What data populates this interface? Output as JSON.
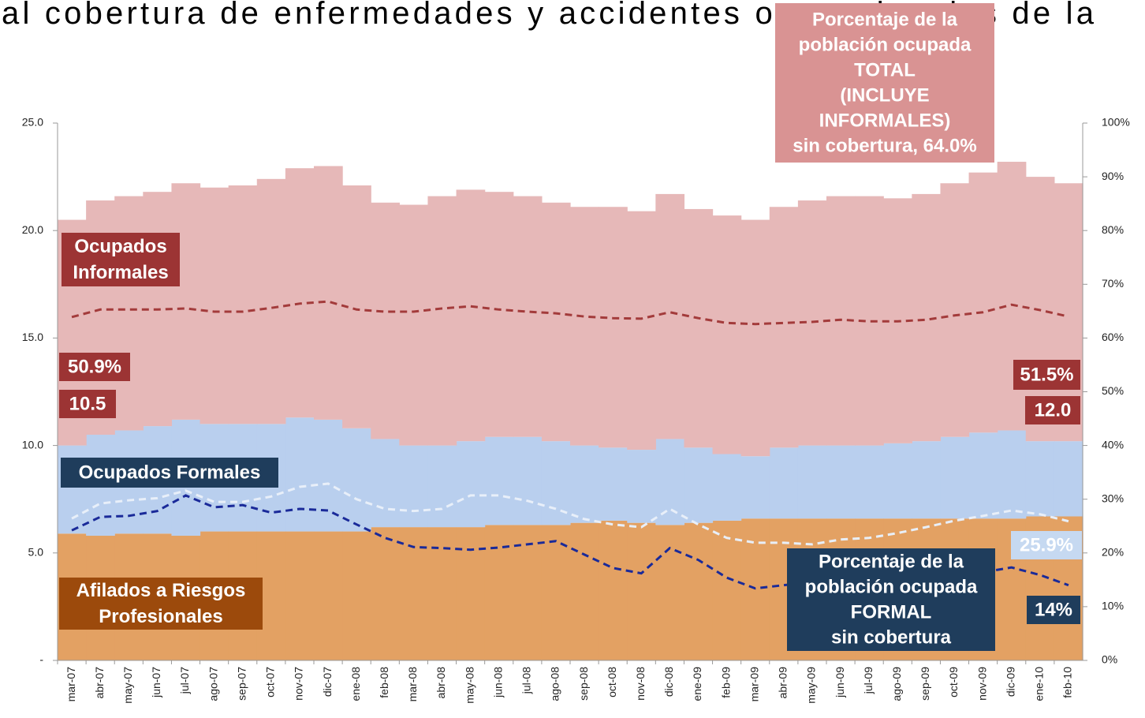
{
  "page_text": "al cobertura de enfermedades y accidentes ocupacionales de la",
  "chart_data": {
    "type": "area",
    "categories": [
      "mar-07",
      "abr-07",
      "may-07",
      "jun-07",
      "jul-07",
      "ago-07",
      "sep-07",
      "oct-07",
      "nov-07",
      "dic-07",
      "ene-08",
      "feb-08",
      "mar-08",
      "abr-08",
      "may-08",
      "jun-08",
      "jul-08",
      "ago-08",
      "sep-08",
      "oct-08",
      "nov-08",
      "dic-08",
      "ene-09",
      "feb-09",
      "mar-09",
      "abr-09",
      "may-09",
      "jun-09",
      "jul-09",
      "ago-09",
      "sep-09",
      "oct-09",
      "nov-09",
      "dic-09",
      "ene-10",
      "feb-10"
    ],
    "ylim": [
      0,
      25
    ],
    "yticks": [
      {
        "value": 0,
        "label": "-"
      },
      {
        "value": 5,
        "label": "5.0"
      },
      {
        "value": 10,
        "label": "10.0"
      },
      {
        "value": 15,
        "label": "15.0"
      },
      {
        "value": 20,
        "label": "20.0"
      },
      {
        "value": 25,
        "label": "25.0"
      }
    ],
    "y2lim": [
      0,
      100
    ],
    "y2ticks": [
      {
        "value": 0,
        "label": "0%"
      },
      {
        "value": 10,
        "label": "10%"
      },
      {
        "value": 20,
        "label": "20%"
      },
      {
        "value": 30,
        "label": "30%"
      },
      {
        "value": 40,
        "label": "40%"
      },
      {
        "value": 50,
        "label": "50%"
      },
      {
        "value": 60,
        "label": "60%"
      },
      {
        "value": 70,
        "label": "70%"
      },
      {
        "value": 80,
        "label": "80%"
      },
      {
        "value": 90,
        "label": "90%"
      },
      {
        "value": 100,
        "label": "100%"
      }
    ],
    "series": [
      {
        "name": "Afilados a Riesgos Profesionales",
        "type": "area",
        "color": "#e3a163",
        "values": [
          5.9,
          5.8,
          5.9,
          5.9,
          5.8,
          6.0,
          6.0,
          6.0,
          6.0,
          6.0,
          6.0,
          6.2,
          6.2,
          6.2,
          6.2,
          6.3,
          6.3,
          6.3,
          6.4,
          6.5,
          6.4,
          6.3,
          6.4,
          6.5,
          6.6,
          6.6,
          6.6,
          6.6,
          6.6,
          6.6,
          6.6,
          6.6,
          6.6,
          6.6,
          6.7,
          6.7
        ]
      },
      {
        "name": "Ocupados Formales",
        "type": "area",
        "color": "#b9cfee",
        "values": [
          4.1,
          4.7,
          4.8,
          5.0,
          5.4,
          5.0,
          5.0,
          5.0,
          5.3,
          5.2,
          4.8,
          4.1,
          3.8,
          3.8,
          4.0,
          4.1,
          4.1,
          3.9,
          3.6,
          3.4,
          3.4,
          4.0,
          3.5,
          3.1,
          2.9,
          3.3,
          3.4,
          3.4,
          3.4,
          3.5,
          3.6,
          3.8,
          4.0,
          4.1,
          3.5,
          3.5
        ]
      },
      {
        "name": "Ocupados Informales",
        "type": "area",
        "color": "#e6b8b8",
        "values": [
          10.5,
          10.9,
          10.9,
          10.9,
          11.0,
          11.0,
          11.1,
          11.4,
          11.6,
          11.8,
          11.3,
          11.0,
          11.2,
          11.6,
          11.7,
          11.4,
          11.2,
          11.1,
          11.1,
          11.2,
          11.1,
          11.4,
          11.1,
          11.1,
          11.0,
          11.2,
          11.4,
          11.6,
          11.6,
          11.4,
          11.5,
          11.8,
          12.1,
          12.5,
          12.3,
          12.0
        ]
      },
      {
        "type": "line",
        "axis": "y2",
        "color": "#a33b3b",
        "values": [
          63.9,
          65.3,
          65.3,
          65.3,
          65.5,
          64.9,
          64.9,
          65.6,
          66.4,
          66.8,
          65.3,
          64.9,
          64.9,
          65.5,
          65.9,
          65.3,
          64.9,
          64.6,
          64.0,
          63.7,
          63.6,
          64.8,
          63.7,
          62.8,
          62.6,
          62.8,
          63.0,
          63.4,
          63.1,
          63.1,
          63.4,
          64.2,
          64.8,
          66.2,
          65.2,
          64.0
        ]
      },
      {
        "type": "line",
        "axis": "y2",
        "color": "#e8eff9",
        "values": [
          26.4,
          29.2,
          29.8,
          30.2,
          31.6,
          29.5,
          29.5,
          30.5,
          32.3,
          32.9,
          30.0,
          28.2,
          27.8,
          28.2,
          30.7,
          30.7,
          29.7,
          28.2,
          26.3,
          25.3,
          24.8,
          28.2,
          25.3,
          22.8,
          21.9,
          21.9,
          21.6,
          22.5,
          22.8,
          23.7,
          24.8,
          26.0,
          26.9,
          27.9,
          27.2,
          25.9
        ]
      },
      {
        "type": "line",
        "axis": "y2",
        "color": "#1a2a99",
        "values": [
          24.2,
          26.7,
          26.9,
          27.8,
          30.7,
          28.5,
          28.9,
          27.5,
          28.2,
          27.9,
          25.3,
          22.8,
          21.1,
          20.9,
          20.6,
          21.0,
          21.6,
          22.2,
          19.7,
          17.2,
          16.2,
          20.9,
          18.7,
          15.4,
          13.4,
          14.0,
          14.5,
          14.8,
          15.0,
          15.0,
          15.3,
          15.7,
          16.4,
          17.3,
          15.9,
          14.0
        ]
      }
    ],
    "annotations": [
      {
        "lines": [
          "Porcentaje de la",
          "población ocupada",
          "TOTAL",
          "(INCLUYE",
          "INFORMALES)",
          "sin cobertura, 64.0%"
        ],
        "color": "#d99393"
      },
      {
        "lines": [
          "Ocupados",
          "Informales"
        ],
        "color": "#9c3434"
      },
      {
        "lines": [
          "50.9%"
        ],
        "color": "#9c3434"
      },
      {
        "lines": [
          "10.5"
        ],
        "color": "#9c3434"
      },
      {
        "lines": [
          "51.5%"
        ],
        "color": "#9c3434"
      },
      {
        "lines": [
          "12.0"
        ],
        "color": "#9c3434"
      },
      {
        "lines": [
          "Ocupados Formales"
        ],
        "color": "#1f3d5c"
      },
      {
        "lines": [
          "Afilados a Riesgos",
          "Profesionales"
        ],
        "color": "#9c4a0c"
      },
      {
        "lines": [
          "25.9%"
        ],
        "color": "#c6d9f1"
      },
      {
        "lines": [
          "Porcentaje de la",
          "población ocupada",
          "FORMAL",
          "sin cobertura"
        ],
        "color": "#1f3d5c"
      },
      {
        "lines": [
          "14%"
        ],
        "color": "#1f3d5c"
      }
    ]
  }
}
